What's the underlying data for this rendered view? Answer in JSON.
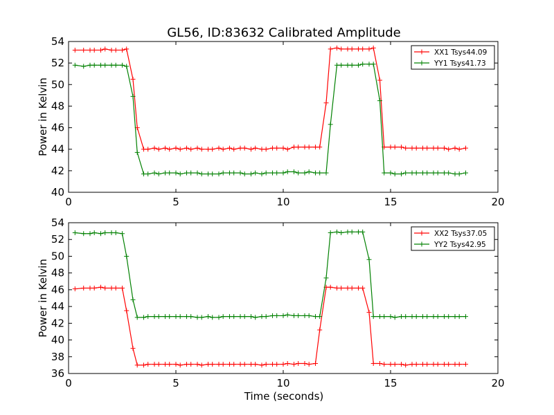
{
  "chart_data": [
    {
      "type": "line",
      "title": "GL56, ID:83632 Calibrated Amplitude",
      "xlabel": "",
      "ylabel": "Power in Kelvin",
      "xlim": [
        0,
        20
      ],
      "ylim": [
        40,
        54
      ],
      "xticks": [
        0,
        5,
        10,
        15,
        20
      ],
      "yticks": [
        40,
        42,
        44,
        46,
        48,
        50,
        52,
        54
      ],
      "legend": "top-right",
      "grid": false,
      "x": [
        0.3,
        0.7,
        1.0,
        1.2,
        1.5,
        1.7,
        2.0,
        2.2,
        2.5,
        2.7,
        3.0,
        3.2,
        3.5,
        3.7,
        4.0,
        4.2,
        4.5,
        4.7,
        5.0,
        5.2,
        5.5,
        5.7,
        6.0,
        6.2,
        6.5,
        6.7,
        7.0,
        7.2,
        7.5,
        7.7,
        8.0,
        8.2,
        8.5,
        8.7,
        9.0,
        9.2,
        9.5,
        9.7,
        10.0,
        10.2,
        10.5,
        10.7,
        11.0,
        11.2,
        11.5,
        11.7,
        12.0,
        12.2,
        12.5,
        12.7,
        13.0,
        13.2,
        13.5,
        13.7,
        14.0,
        14.2,
        14.5,
        14.7,
        15.0,
        15.2,
        15.5,
        15.7,
        16.0,
        16.2,
        16.5,
        16.7,
        17.0,
        17.2,
        17.5,
        17.7,
        18.0,
        18.2,
        18.5
      ],
      "series": [
        {
          "name": "XX1 Tsys44.09",
          "color": "#ff0000",
          "values": [
            53.2,
            53.2,
            53.2,
            53.2,
            53.2,
            53.3,
            53.2,
            53.2,
            53.2,
            53.3,
            50.5,
            46.0,
            44.0,
            44.0,
            44.1,
            44.0,
            44.1,
            44.0,
            44.1,
            44.0,
            44.1,
            44.0,
            44.1,
            44.0,
            44.0,
            44.0,
            44.1,
            44.0,
            44.1,
            44.0,
            44.1,
            44.1,
            44.0,
            44.1,
            44.0,
            44.0,
            44.1,
            44.1,
            44.1,
            44.0,
            44.2,
            44.2,
            44.2,
            44.2,
            44.2,
            44.2,
            48.3,
            53.3,
            53.4,
            53.3,
            53.3,
            53.3,
            53.3,
            53.3,
            53.3,
            53.4,
            50.4,
            44.2,
            44.2,
            44.2,
            44.2,
            44.1,
            44.1,
            44.1,
            44.1,
            44.1,
            44.1,
            44.1,
            44.1,
            44.0,
            44.1,
            44.0,
            44.1
          ]
        },
        {
          "name": "YY1 Tsys41.73",
          "color": "#008000",
          "values": [
            51.8,
            51.7,
            51.8,
            51.8,
            51.8,
            51.8,
            51.8,
            51.8,
            51.8,
            51.7,
            48.9,
            43.7,
            41.7,
            41.7,
            41.8,
            41.7,
            41.8,
            41.8,
            41.8,
            41.7,
            41.8,
            41.8,
            41.8,
            41.7,
            41.7,
            41.7,
            41.7,
            41.8,
            41.8,
            41.8,
            41.8,
            41.7,
            41.7,
            41.8,
            41.7,
            41.8,
            41.8,
            41.8,
            41.8,
            41.9,
            41.9,
            41.8,
            41.8,
            41.9,
            41.8,
            41.8,
            41.8,
            46.3,
            51.8,
            51.8,
            51.8,
            51.8,
            51.8,
            51.9,
            51.9,
            51.9,
            48.5,
            41.8,
            41.8,
            41.7,
            41.7,
            41.8,
            41.8,
            41.8,
            41.8,
            41.8,
            41.8,
            41.8,
            41.8,
            41.8,
            41.7,
            41.7,
            41.8
          ]
        }
      ]
    },
    {
      "type": "line",
      "title": "",
      "xlabel": "Time (seconds)",
      "ylabel": "Power in Kelvin",
      "xlim": [
        0,
        20
      ],
      "ylim": [
        36,
        54
      ],
      "xticks": [
        0,
        5,
        10,
        15,
        20
      ],
      "yticks": [
        36,
        38,
        40,
        42,
        44,
        46,
        48,
        50,
        52,
        54
      ],
      "legend": "top-right",
      "grid": false,
      "x": [
        0.3,
        0.7,
        1.0,
        1.2,
        1.5,
        1.7,
        2.0,
        2.2,
        2.5,
        2.7,
        3.0,
        3.2,
        3.5,
        3.7,
        4.0,
        4.2,
        4.5,
        4.7,
        5.0,
        5.2,
        5.5,
        5.7,
        6.0,
        6.2,
        6.5,
        6.7,
        7.0,
        7.2,
        7.5,
        7.7,
        8.0,
        8.2,
        8.5,
        8.7,
        9.0,
        9.2,
        9.5,
        9.7,
        10.0,
        10.2,
        10.5,
        10.7,
        11.0,
        11.2,
        11.5,
        11.7,
        12.0,
        12.2,
        12.5,
        12.7,
        13.0,
        13.2,
        13.5,
        13.7,
        14.0,
        14.2,
        14.5,
        14.7,
        15.0,
        15.2,
        15.5,
        15.7,
        16.0,
        16.2,
        16.5,
        16.7,
        17.0,
        17.2,
        17.5,
        17.7,
        18.0,
        18.2,
        18.5
      ],
      "series": [
        {
          "name": "XX2 Tsys37.05",
          "color": "#ff0000",
          "values": [
            46.1,
            46.2,
            46.2,
            46.2,
            46.3,
            46.2,
            46.2,
            46.2,
            46.2,
            43.5,
            39.0,
            37.0,
            37.0,
            37.1,
            37.1,
            37.1,
            37.1,
            37.1,
            37.1,
            37.0,
            37.1,
            37.1,
            37.1,
            37.0,
            37.1,
            37.1,
            37.1,
            37.1,
            37.1,
            37.1,
            37.1,
            37.1,
            37.1,
            37.1,
            37.0,
            37.1,
            37.1,
            37.1,
            37.1,
            37.2,
            37.1,
            37.2,
            37.2,
            37.1,
            37.2,
            41.2,
            46.3,
            46.3,
            46.2,
            46.2,
            46.2,
            46.2,
            46.2,
            46.2,
            43.3,
            37.2,
            37.2,
            37.1,
            37.1,
            37.1,
            37.1,
            37.0,
            37.1,
            37.1,
            37.1,
            37.1,
            37.1,
            37.1,
            37.1,
            37.1,
            37.1,
            37.1,
            37.1
          ]
        },
        {
          "name": "YY2 Tsys42.95",
          "color": "#008000",
          "values": [
            52.8,
            52.7,
            52.7,
            52.8,
            52.7,
            52.8,
            52.8,
            52.8,
            52.7,
            50.0,
            44.8,
            42.7,
            42.7,
            42.8,
            42.8,
            42.8,
            42.8,
            42.8,
            42.8,
            42.8,
            42.8,
            42.8,
            42.7,
            42.7,
            42.8,
            42.7,
            42.7,
            42.8,
            42.8,
            42.8,
            42.8,
            42.8,
            42.8,
            42.7,
            42.8,
            42.8,
            42.9,
            42.9,
            42.9,
            43.0,
            42.9,
            42.9,
            42.9,
            42.9,
            42.8,
            42.8,
            47.4,
            52.8,
            52.9,
            52.8,
            52.9,
            52.9,
            52.9,
            52.9,
            49.6,
            42.8,
            42.8,
            42.8,
            42.8,
            42.7,
            42.8,
            42.8,
            42.8,
            42.8,
            42.8,
            42.8,
            42.8,
            42.8,
            42.8,
            42.8,
            42.8,
            42.8,
            42.8
          ]
        }
      ]
    }
  ]
}
